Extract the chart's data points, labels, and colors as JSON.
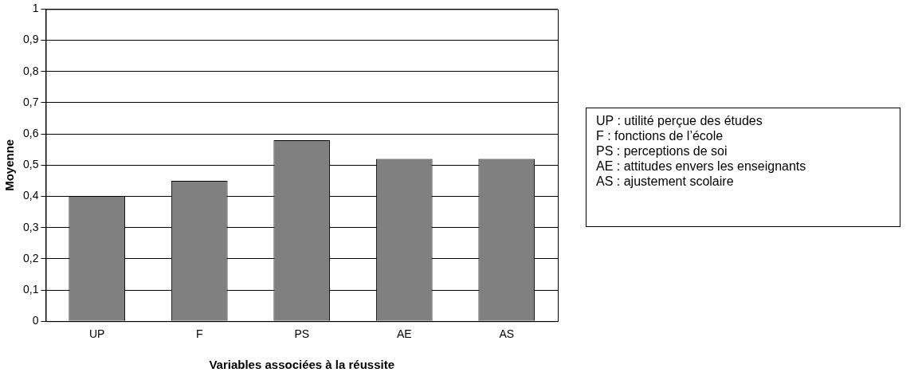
{
  "chart_data": {
    "type": "bar",
    "xlabel": "Variables associées à la réussite",
    "ylabel": "Moyenne",
    "categories": [
      "UP",
      "F",
      "PS",
      "AE",
      "AS"
    ],
    "values": [
      0.4,
      0.45,
      0.58,
      0.52,
      0.52
    ],
    "color": "#808080",
    "ylim": [
      0,
      1
    ],
    "yticks": [
      0,
      {
        "value": 0.1,
        "label": "0,1"
      },
      {
        "value": 0.2,
        "label": "0,2"
      },
      {
        "value": 0.3,
        "label": "0,3"
      },
      {
        "value": 0.4,
        "label": "0,4"
      },
      {
        "value": 0.5,
        "label": "0,5"
      },
      {
        "value": 0.6,
        "label": "0,6"
      },
      {
        "value": 0.7,
        "label": "0,7"
      },
      {
        "value": 0.8,
        "label": "0,8"
      },
      {
        "value": 0.9,
        "label": "0,9"
      },
      1
    ],
    "grid": "y",
    "legend": false,
    "annotations": [
      "UP : utilité perçue des études",
      "F : fonctions de l’école",
      "PS : perceptions de soi",
      "AE : attitudes envers les enseignants",
      "AS : ajustement scolaire"
    ]
  }
}
